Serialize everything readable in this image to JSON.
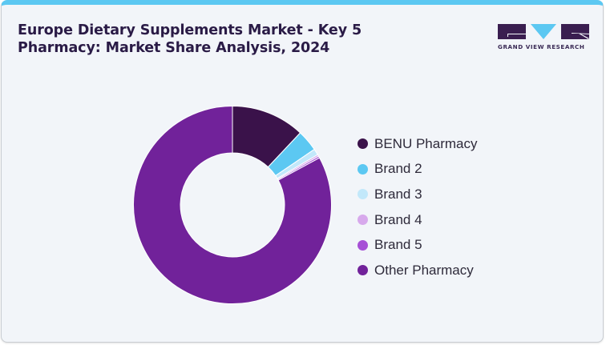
{
  "header": {
    "title_line1": "Europe Dietary Supplements Market - Key 5",
    "title_line2": "Pharmacy: Market Share Analysis, 2024"
  },
  "logo": {
    "text": "GRAND VIEW RESEARCH",
    "colors": {
      "dark": "#3A1E50",
      "accent": "#5CC8F2"
    }
  },
  "theme": {
    "background": "#F2F5F9",
    "top_border": "#5CC8F2",
    "title_color": "#2A1B46"
  },
  "chart_data": {
    "type": "pie",
    "subtype": "donut",
    "title": "Europe Dietary Supplements Market - Key 5 Pharmacy: Market Share Analysis, 2024",
    "categories": [
      "BENU Pharmacy",
      "Brand 2",
      "Brand 3",
      "Brand 4",
      "Brand 5",
      "Other Pharmacy"
    ],
    "values": [
      12.0,
      3.5,
      1.0,
      0.3,
      0.3,
      82.9
    ],
    "unit": "%",
    "colors": [
      "#3A124A",
      "#5CC8F2",
      "#C2E8FA",
      "#D7A9EC",
      "#A64FD6",
      "#71229A"
    ],
    "start_angle_deg": 0,
    "direction": "clockwise",
    "legend_position": "right",
    "data_labels": false
  },
  "legend": {
    "items": [
      {
        "label": "BENU Pharmacy",
        "color": "#3A124A"
      },
      {
        "label": "Brand 2",
        "color": "#5CC8F2"
      },
      {
        "label": "Brand 3",
        "color": "#C2E8FA"
      },
      {
        "label": "Brand 4",
        "color": "#D7A9EC"
      },
      {
        "label": "Brand 5",
        "color": "#A64FD6"
      },
      {
        "label": "Other Pharmacy",
        "color": "#71229A"
      }
    ]
  }
}
